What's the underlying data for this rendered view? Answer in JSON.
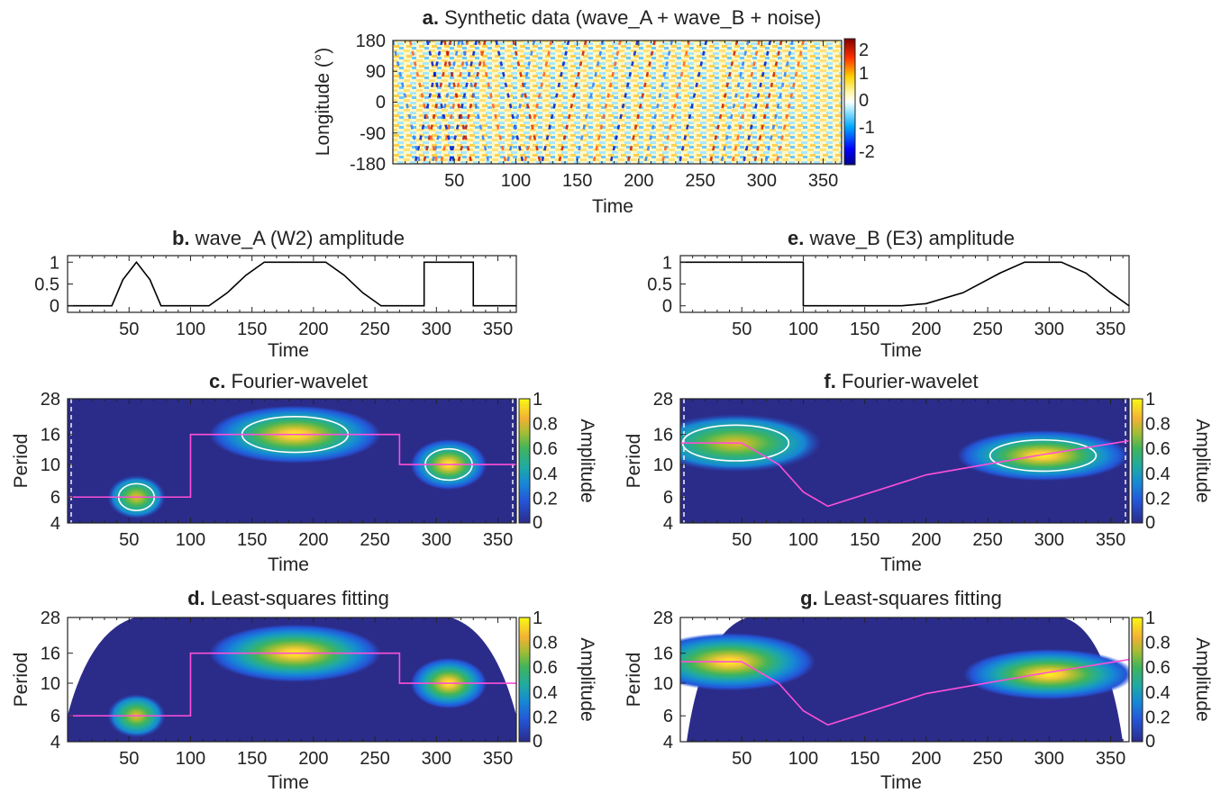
{
  "panels": {
    "a": {
      "letter": "a.",
      "title": "Synthetic data (wave_A + wave_B + noise)",
      "xlabel": "Time",
      "ylabel": "Longitude (°)",
      "xticks": [
        "50",
        "100",
        "150",
        "200",
        "250",
        "300",
        "350"
      ],
      "yticks": [
        "180",
        "90",
        "0",
        "-90",
        "-180"
      ],
      "cbar_ticks": [
        "2",
        "1",
        "0",
        "-1",
        "-2"
      ]
    },
    "b": {
      "letter": "b.",
      "title": "wave_A (W2) amplitude",
      "xlabel": "Time",
      "xticks": [
        "50",
        "100",
        "150",
        "200",
        "250",
        "300",
        "350"
      ],
      "yticks": [
        "1",
        "0.5",
        "0"
      ]
    },
    "e": {
      "letter": "e.",
      "title": "wave_B (E3) amplitude",
      "xlabel": "Time",
      "xticks": [
        "50",
        "100",
        "150",
        "200",
        "250",
        "300",
        "350"
      ],
      "yticks": [
        "1",
        "0.5",
        "0"
      ]
    },
    "c": {
      "letter": "c.",
      "title": "Fourier-wavelet",
      "xlabel": "Time",
      "ylabel": "Period",
      "cbar_label": "Amplitude",
      "xticks": [
        "50",
        "100",
        "150",
        "200",
        "250",
        "300",
        "350"
      ],
      "yticks": [
        "28",
        "16",
        "10",
        "6",
        "4"
      ],
      "cbar_ticks": [
        "1",
        "0.8",
        "0.6",
        "0.4",
        "0.2",
        "0"
      ]
    },
    "f": {
      "letter": "f.",
      "title": "Fourier-wavelet",
      "xlabel": "Time",
      "ylabel": "Period",
      "cbar_label": "Amplitude",
      "xticks": [
        "50",
        "100",
        "150",
        "200",
        "250",
        "300",
        "350"
      ],
      "yticks": [
        "28",
        "16",
        "10",
        "6",
        "4"
      ],
      "cbar_ticks": [
        "1",
        "0.8",
        "0.6",
        "0.4",
        "0.2",
        "0"
      ]
    },
    "d": {
      "letter": "d.",
      "title": "Least-squares fitting",
      "xlabel": "Time",
      "ylabel": "Period",
      "cbar_label": "Amplitude",
      "xticks": [
        "50",
        "100",
        "150",
        "200",
        "250",
        "300",
        "350"
      ],
      "yticks": [
        "28",
        "16",
        "10",
        "6",
        "4"
      ],
      "cbar_ticks": [
        "1",
        "0.8",
        "0.6",
        "0.4",
        "0.2",
        "0"
      ]
    },
    "g": {
      "letter": "g.",
      "title": "Least-squares fitting",
      "xlabel": "Time",
      "ylabel": "Period",
      "cbar_label": "Amplitude",
      "xticks": [
        "50",
        "100",
        "150",
        "200",
        "250",
        "300",
        "350"
      ],
      "yticks": [
        "28",
        "16",
        "10",
        "6",
        "4"
      ],
      "cbar_ticks": [
        "1",
        "0.8",
        "0.6",
        "0.4",
        "0.2",
        "0"
      ]
    }
  },
  "chart_data": [
    {
      "id": "a",
      "type": "heatmap",
      "title": "a. Synthetic data (wave_A + wave_B + noise)",
      "xlabel": "Time",
      "ylabel": "Longitude (°)",
      "xlim": [
        0,
        365
      ],
      "ylim": [
        -180,
        180
      ],
      "colorbar_range": [
        -2.3,
        2.3
      ],
      "colormap": "jet"
    },
    {
      "id": "b",
      "type": "line",
      "title": "b. wave_A (W2) amplitude",
      "xlabel": "Time",
      "xlim": [
        0,
        365
      ],
      "ylim": [
        0,
        1
      ],
      "x": [
        0,
        36,
        45,
        56,
        67,
        76,
        115,
        130,
        145,
        160,
        185,
        210,
        225,
        240,
        255,
        290,
        290,
        330,
        330,
        365
      ],
      "y": [
        0,
        0,
        0.6,
        1,
        0.6,
        0,
        0,
        0.3,
        0.7,
        1,
        1,
        1,
        0.7,
        0.3,
        0,
        0,
        1,
        1,
        0,
        0
      ]
    },
    {
      "id": "e",
      "type": "line",
      "title": "e. wave_B (E3) amplitude",
      "xlabel": "Time",
      "xlim": [
        0,
        365
      ],
      "ylim": [
        0,
        1
      ],
      "x": [
        0,
        100,
        100,
        180,
        200,
        230,
        260,
        280,
        310,
        330,
        350,
        365
      ],
      "y": [
        1,
        1,
        0,
        0,
        0.05,
        0.3,
        0.75,
        1,
        1,
        0.75,
        0.3,
        0
      ]
    },
    {
      "id": "c",
      "type": "heatmap",
      "title": "c. Fourier-wavelet",
      "xlabel": "Time",
      "ylabel": "Period",
      "cbar_label": "Amplitude",
      "xlim": [
        0,
        365
      ],
      "ylim": [
        4,
        28
      ],
      "yscale": "log",
      "colorbar_range": [
        0,
        1
      ],
      "blobs": [
        {
          "t": 56,
          "period": 6,
          "amp": 0.75
        },
        {
          "t": 185,
          "period": 16,
          "amp": 1
        },
        {
          "t": 310,
          "period": 10,
          "amp": 0.9
        }
      ],
      "ridge": {
        "x": [
          0,
          100,
          100,
          270,
          270,
          365
        ],
        "y": [
          6,
          6,
          16,
          16,
          10,
          10
        ]
      }
    },
    {
      "id": "f",
      "type": "heatmap",
      "title": "f. Fourier-wavelet",
      "xlabel": "Time",
      "ylabel": "Period",
      "cbar_label": "Amplitude",
      "xlim": [
        0,
        365
      ],
      "ylim": [
        4,
        28
      ],
      "yscale": "log",
      "colorbar_range": [
        0,
        1
      ],
      "blobs": [
        {
          "t": 45,
          "period": 14,
          "amp": 0.85
        },
        {
          "t": 295,
          "period": 11.5,
          "amp": 0.95
        }
      ],
      "ridge": {
        "x": [
          0,
          50,
          80,
          100,
          120,
          200,
          290,
          365
        ],
        "y": [
          14,
          14,
          10,
          6.5,
          5.2,
          8.5,
          11.5,
          14.5
        ]
      }
    },
    {
      "id": "d",
      "type": "heatmap",
      "title": "d. Least-squares fitting",
      "xlabel": "Time",
      "ylabel": "Period",
      "cbar_label": "Amplitude",
      "xlim": [
        0,
        365
      ],
      "ylim": [
        4,
        28
      ],
      "yscale": "log",
      "colorbar_range": [
        0,
        1
      ],
      "blobs": [
        {
          "t": 56,
          "period": 6,
          "amp": 0.8
        },
        {
          "t": 185,
          "period": 16,
          "amp": 1
        },
        {
          "t": 310,
          "period": 10,
          "amp": 0.95
        }
      ],
      "ridge": {
        "x": [
          0,
          100,
          100,
          270,
          270,
          365
        ],
        "y": [
          6,
          6,
          16,
          16,
          10,
          10
        ]
      }
    },
    {
      "id": "g",
      "type": "heatmap",
      "title": "g. Least-squares fitting",
      "xlabel": "Time",
      "ylabel": "Period",
      "cbar_label": "Amplitude",
      "xlim": [
        0,
        365
      ],
      "ylim": [
        4,
        28
      ],
      "yscale": "log",
      "colorbar_range": [
        0,
        1
      ],
      "blobs": [
        {
          "t": 40,
          "period": 14,
          "amp": 0.95
        },
        {
          "t": 300,
          "period": 11.5,
          "amp": 1
        }
      ],
      "ridge": {
        "x": [
          0,
          50,
          80,
          100,
          120,
          200,
          290,
          365
        ],
        "y": [
          14,
          14,
          10,
          6.5,
          5.2,
          8.5,
          11.5,
          14.5
        ]
      }
    }
  ]
}
